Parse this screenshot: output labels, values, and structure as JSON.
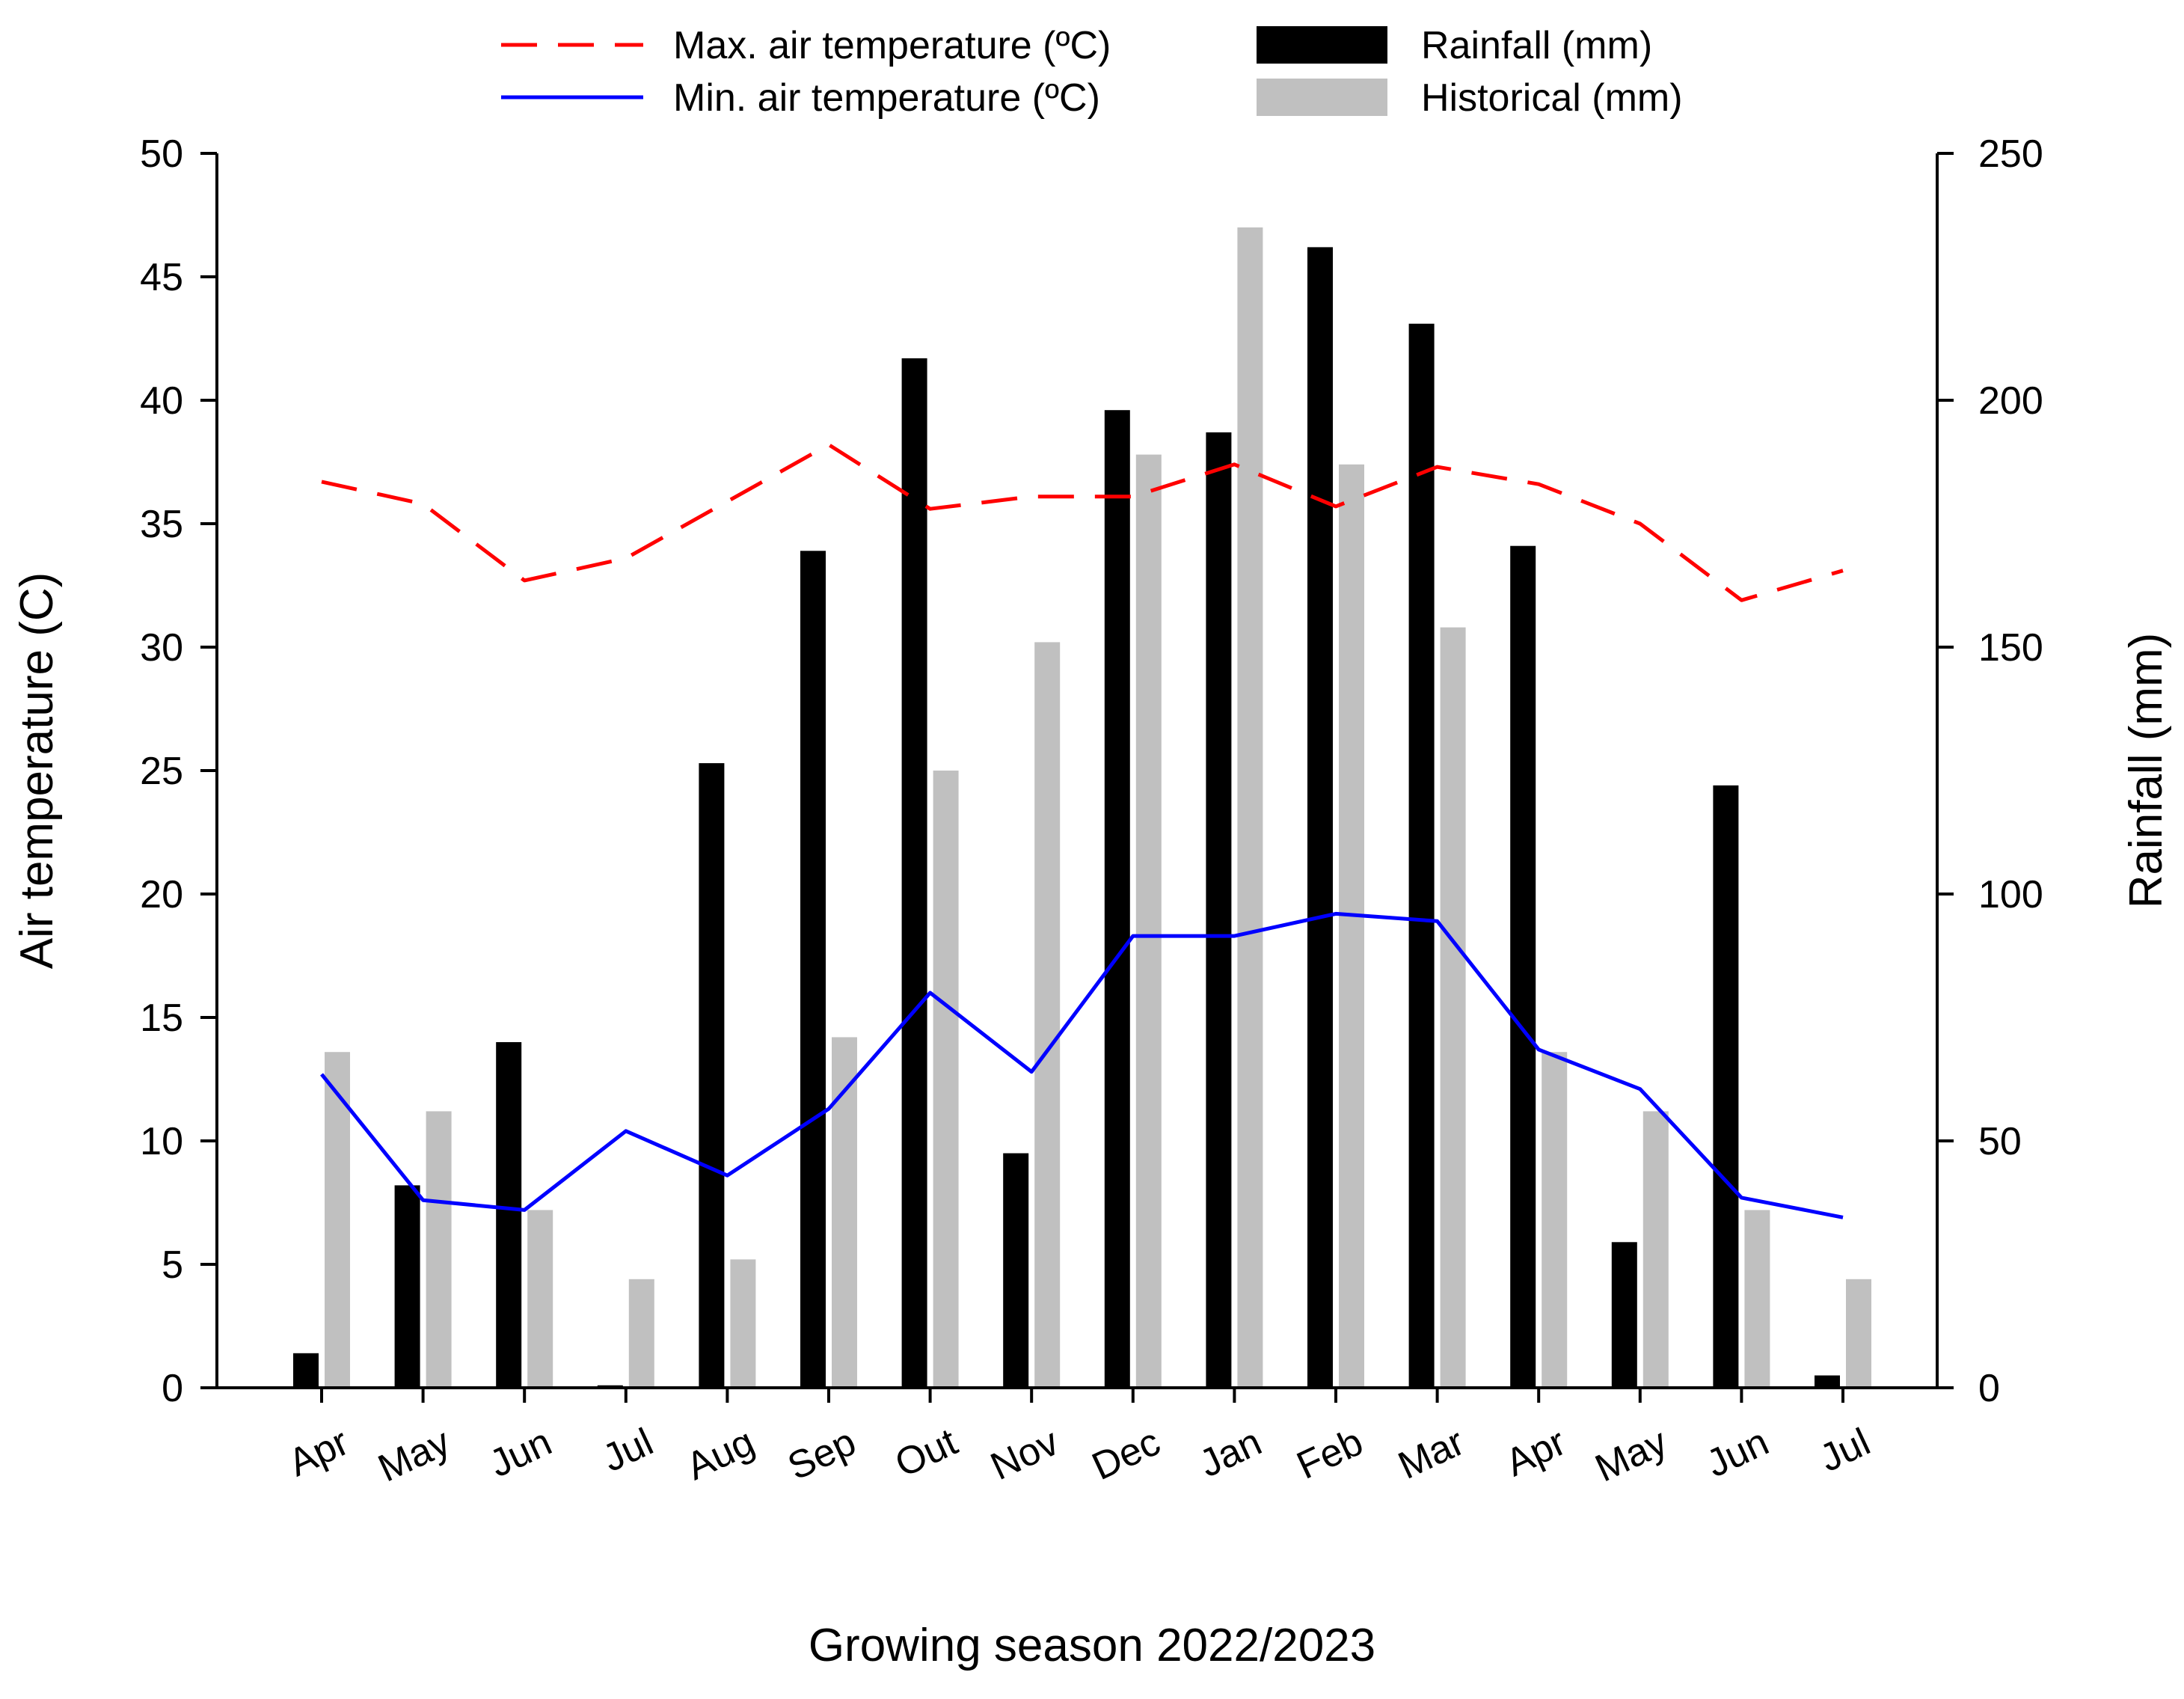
{
  "chart_data": {
    "type": "bar",
    "xlabel": "Growing season 2022/2023",
    "ylabel_left": "Air temperature (C)",
    "ylabel_right": "Rainfall (mm)",
    "ylim_left": [
      0,
      50
    ],
    "ylim_right": [
      0,
      250
    ],
    "yticks_left": [
      "0",
      "5",
      "10",
      "15",
      "20",
      "25",
      "30",
      "35",
      "40",
      "45",
      "50"
    ],
    "yticks_right": [
      "0",
      "50",
      "100",
      "150",
      "200",
      "250"
    ],
    "categories": [
      "Apr",
      "May",
      "Jun",
      "Jul",
      "Aug",
      "Sep",
      "Out",
      "Nov",
      "Dec",
      "Jan",
      "Feb",
      "Mar",
      "Apr",
      "May",
      "Jun",
      "Jul"
    ],
    "series": [
      {
        "name": "Rainfall (mm)",
        "kind": "bar",
        "axis": "right",
        "color": "#000000",
        "values": [
          7,
          41,
          70,
          0.5,
          126.5,
          169.5,
          208.5,
          47.5,
          198,
          193.5,
          231,
          215.5,
          170.5,
          29.5,
          122,
          2.5
        ]
      },
      {
        "name": "Historical (mm)",
        "kind": "bar",
        "axis": "right",
        "color": "#c0c0c0",
        "values": [
          68,
          56,
          36,
          22,
          26,
          71,
          125,
          151,
          189,
          235,
          187,
          154,
          68,
          56,
          36,
          22
        ]
      },
      {
        "name": "Max. air temperature (ºC)",
        "kind": "line",
        "axis": "left",
        "color": "#ff0000",
        "dash": true,
        "values": [
          36.7,
          35.8,
          32.7,
          33.6,
          35.9,
          38.2,
          35.6,
          36.1,
          36.1,
          37.4,
          35.7,
          37.3,
          36.6,
          35.0,
          31.9,
          33.1
        ]
      },
      {
        "name": "Min. air temperature (ºC)",
        "kind": "line",
        "axis": "left",
        "color": "#0000ff",
        "dash": false,
        "values": [
          12.7,
          7.6,
          7.2,
          10.4,
          8.6,
          11.3,
          16.0,
          12.8,
          18.3,
          18.3,
          19.2,
          18.9,
          13.7,
          12.1,
          7.7,
          6.9
        ]
      }
    ],
    "legend": [
      {
        "label": "Max. air temperature (ºC)",
        "symbol": "dash-line",
        "color": "#ff0000"
      },
      {
        "label": "Min. air temperature (ºC)",
        "symbol": "line",
        "color": "#0000ff"
      },
      {
        "label": "Rainfall (mm)",
        "symbol": "box",
        "color": "#000000"
      },
      {
        "label": "Historical (mm)",
        "symbol": "box",
        "color": "#c0c0c0"
      }
    ],
    "legend_position": "top"
  }
}
